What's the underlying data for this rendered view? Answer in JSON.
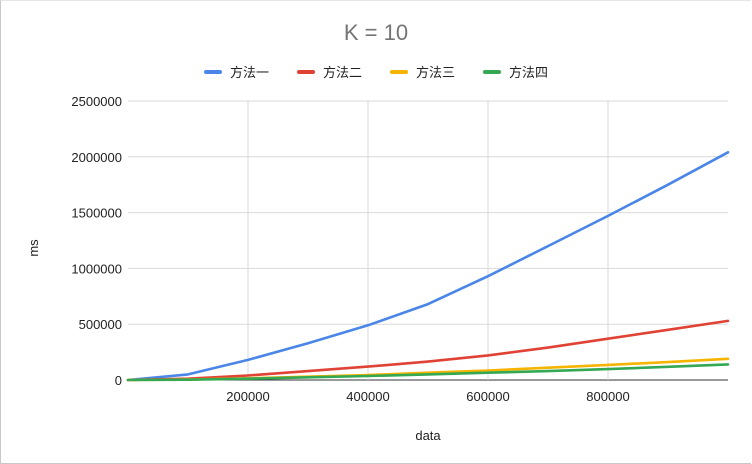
{
  "chart_data": {
    "type": "line",
    "title": "K = 10",
    "xlabel": "data",
    "ylabel": "ms",
    "xlim": [
      0,
      1000000
    ],
    "ylim": [
      0,
      2500000
    ],
    "x_ticks": [
      200000,
      400000,
      600000,
      800000
    ],
    "x_tick_labels": [
      "200000",
      "400000",
      "600000",
      "800000"
    ],
    "y_ticks": [
      0,
      500000,
      1000000,
      1500000,
      2000000,
      2500000
    ],
    "y_tick_labels": [
      "0",
      "500000",
      "1000000",
      "1500000",
      "2000000",
      "2500000"
    ],
    "grid": true,
    "legend": "top",
    "x": [
      0,
      100000,
      200000,
      300000,
      400000,
      500000,
      600000,
      700000,
      800000,
      900000,
      1000000
    ],
    "series": [
      {
        "name": "方法一",
        "color": "#4a86e8",
        "values": [
          0,
          50000,
          180000,
          330000,
          490000,
          680000,
          930000,
          1200000,
          1470000,
          1750000,
          2040000
        ]
      },
      {
        "name": "方法二",
        "color": "#e04335",
        "values": [
          0,
          12000,
          40000,
          80000,
          120000,
          165000,
          220000,
          290000,
          370000,
          450000,
          530000
        ]
      },
      {
        "name": "方法三",
        "color": "#f4b400",
        "values": [
          0,
          4000,
          15000,
          30000,
          45000,
          65000,
          85000,
          110000,
          135000,
          160000,
          190000
        ]
      },
      {
        "name": "方法四",
        "color": "#34a853",
        "values": [
          0,
          3000,
          12000,
          24000,
          36000,
          50000,
          65000,
          80000,
          98000,
          118000,
          140000
        ]
      }
    ]
  }
}
